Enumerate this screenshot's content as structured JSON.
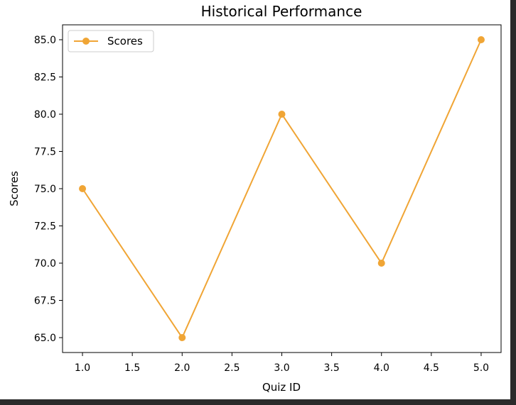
{
  "colors": {
    "series": "#f0a535",
    "frame_border": "#2b2b2b",
    "canvas": "#ffffff"
  },
  "chart_data": {
    "type": "line",
    "title": "Historical Performance",
    "xlabel": "Quiz ID",
    "ylabel": "Scores",
    "xlim": [
      0.8,
      5.2
    ],
    "ylim": [
      64.0,
      86.0
    ],
    "x_ticks": [
      1.0,
      1.5,
      2.0,
      2.5,
      3.0,
      3.5,
      4.0,
      4.5,
      5.0
    ],
    "x_tick_labels": [
      "1.0",
      "1.5",
      "2.0",
      "2.5",
      "3.0",
      "3.5",
      "4.0",
      "4.5",
      "5.0"
    ],
    "y_ticks": [
      65.0,
      67.5,
      70.0,
      72.5,
      75.0,
      77.5,
      80.0,
      82.5,
      85.0
    ],
    "y_tick_labels": [
      "65.0",
      "67.5",
      "70.0",
      "72.5",
      "75.0",
      "77.5",
      "80.0",
      "82.5",
      "85.0"
    ],
    "grid": false,
    "legend_position": "top-left",
    "series": [
      {
        "name": "Scores",
        "marker": "circle",
        "x": [
          1,
          2,
          3,
          4,
          5
        ],
        "y": [
          75,
          65,
          80,
          70,
          85
        ]
      }
    ]
  }
}
